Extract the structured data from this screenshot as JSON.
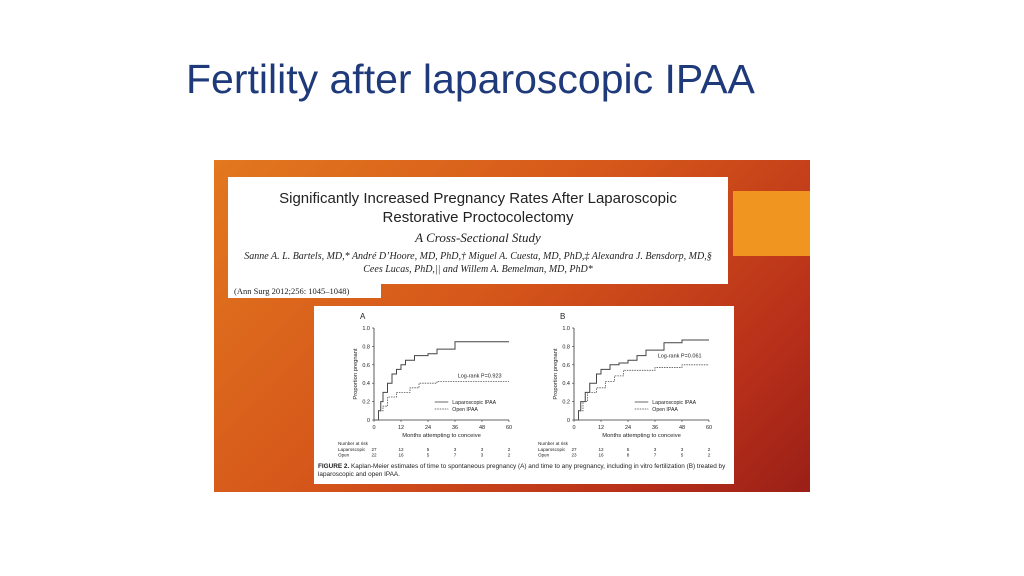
{
  "slide": {
    "title": "Fertility after laparoscopic IPAA"
  },
  "paper": {
    "title_line1": "Significantly Increased Pregnancy Rates After Laparoscopic",
    "title_line2": "Restorative Proctocolectomy",
    "subtitle": "A Cross-Sectional Study",
    "authors_line1": "Sanne A. L. Bartels, MD,* André D’Hoore, MD, PhD,† Miguel A. Cuesta, MD, PhD,‡ Alexandra J. Bensdorp, MD,§",
    "authors_line2": "Cees Lucas, PhD,|| and Willem A. Bemelman, MD, PhD*",
    "citation": "(Ann Surg 2012;256: 1045–1048)"
  },
  "figure": {
    "caption_label": "FIGURE 2.",
    "caption_text": "Kaplan-Meier estimates of time to spontaneous pregnancy (A) and time to any pregnancy, including in vitro fertilization (B) treated by laparoscopic and open IPAA.",
    "colors": {
      "laparoscopic": "#444444",
      "open": "#555555"
    }
  },
  "chart_data": [
    {
      "type": "line",
      "panel_label": "A",
      "xlabel": "Months attempting to conceive",
      "ylabel": "Proportion pregnant",
      "xlim": [
        0,
        60
      ],
      "ylim": [
        0,
        1.0
      ],
      "x_ticks": [
        0,
        12,
        24,
        36,
        48,
        60
      ],
      "y_ticks": [
        "0",
        "0.2",
        "0.4",
        "0.6",
        "0.8",
        "1.0"
      ],
      "annotation": "Log-rank P=0.923",
      "legend": [
        "Laparoscopic IPAA",
        "Open IPAA"
      ],
      "series": [
        {
          "name": "Laparoscopic IPAA",
          "x": [
            0,
            2,
            3,
            4,
            6,
            8,
            10,
            12,
            14,
            18,
            24,
            28,
            36,
            60
          ],
          "y": [
            0,
            0.1,
            0.2,
            0.3,
            0.4,
            0.5,
            0.55,
            0.6,
            0.65,
            0.7,
            0.72,
            0.77,
            0.85,
            0.85
          ]
        },
        {
          "name": "Open IPAA",
          "x": [
            0,
            2,
            4,
            6,
            10,
            16,
            20,
            26,
            28,
            60
          ],
          "y": [
            0,
            0.1,
            0.15,
            0.25,
            0.3,
            0.35,
            0.4,
            0.4,
            0.42,
            0.42
          ]
        }
      ],
      "risk_table": {
        "header": "Number at risk",
        "rows": [
          {
            "label": "Laparoscopic",
            "values": [
              "27",
              "12",
              "5",
              "3",
              "3",
              "2"
            ]
          },
          {
            "label": "Open",
            "values": [
              "22",
              "16",
              "5",
              "7",
              "3",
              "2"
            ]
          }
        ]
      }
    },
    {
      "type": "line",
      "panel_label": "B",
      "xlabel": "Months attempting to conceive",
      "ylabel": "Proportion pregnant",
      "xlim": [
        0,
        60
      ],
      "ylim": [
        0,
        1.0
      ],
      "x_ticks": [
        0,
        12,
        24,
        36,
        48,
        60
      ],
      "y_ticks": [
        "0",
        "0.2",
        "0.4",
        "0.6",
        "0.8",
        "1.0"
      ],
      "annotation": "Log-rank P=0.061",
      "legend": [
        "Laparoscopic IPAA",
        "Open IPAA"
      ],
      "series": [
        {
          "name": "Laparoscopic IPAA",
          "x": [
            0,
            2,
            3,
            5,
            7,
            10,
            12,
            16,
            20,
            24,
            28,
            32,
            40,
            48,
            60
          ],
          "y": [
            0,
            0.1,
            0.2,
            0.3,
            0.4,
            0.5,
            0.55,
            0.6,
            0.62,
            0.65,
            0.7,
            0.76,
            0.84,
            0.87,
            0.87
          ]
        },
        {
          "name": "Open IPAA",
          "x": [
            0,
            2,
            4,
            6,
            10,
            14,
            18,
            22,
            36,
            48,
            60
          ],
          "y": [
            0,
            0.1,
            0.2,
            0.3,
            0.35,
            0.42,
            0.48,
            0.54,
            0.57,
            0.6,
            0.6
          ]
        }
      ],
      "risk_table": {
        "header": "Number at risk",
        "rows": [
          {
            "label": "Laparoscopic",
            "values": [
              "27",
              "12",
              "5",
              "3",
              "3",
              "2"
            ]
          },
          {
            "label": "Open",
            "values": [
              "23",
              "16",
              "8",
              "7",
              "5",
              "2"
            ]
          }
        ]
      }
    }
  ]
}
